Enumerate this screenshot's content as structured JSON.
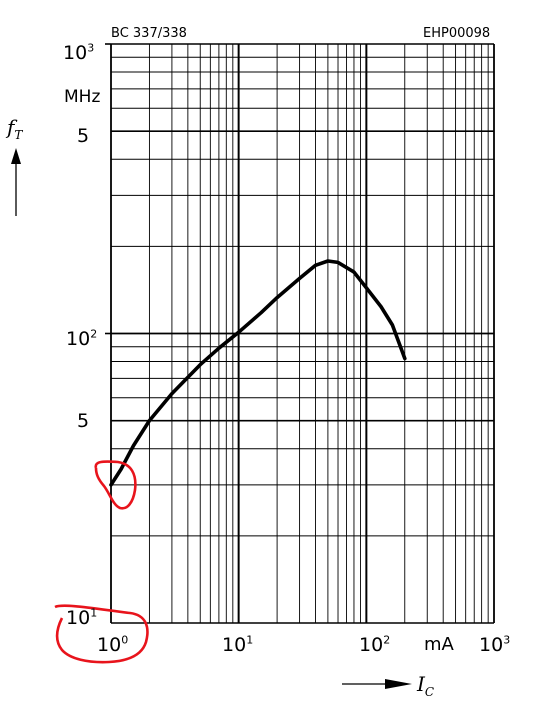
{
  "header": {
    "part_number": "BC 337/338",
    "doc_code": "EHP00098"
  },
  "y_axis": {
    "symbol": "f",
    "subscript": "T",
    "unit": "MHz",
    "tick_labels": [
      {
        "base": "10",
        "exp": "3"
      },
      {
        "base": "5",
        "exp": ""
      },
      {
        "base": "10",
        "exp": "2"
      },
      {
        "base": "5",
        "exp": ""
      },
      {
        "base": "10",
        "exp": "1"
      }
    ]
  },
  "x_axis": {
    "symbol": "I",
    "subscript": "C",
    "unit": "mA",
    "tick_labels": [
      {
        "base": "10",
        "exp": "0"
      },
      {
        "base": "10",
        "exp": "1"
      },
      {
        "base": "10",
        "exp": "2"
      },
      {
        "base": "10",
        "exp": "3"
      }
    ]
  },
  "colors": {
    "line": "#000000",
    "grid": "#000000",
    "annotation": "#e8141c"
  },
  "chart_data": {
    "type": "line",
    "title": "",
    "xlabel": "I_C (mA)",
    "ylabel": "f_T (MHz)",
    "x_scale": "log",
    "y_scale": "log",
    "xlim": [
      1,
      1000
    ],
    "ylim": [
      10,
      1000
    ],
    "grid": true,
    "series": [
      {
        "x": [
          1,
          1.2,
          1.5,
          2,
          3,
          5,
          7,
          10,
          15,
          20,
          30,
          40,
          50,
          60,
          80,
          100,
          130,
          160,
          200
        ],
        "y": [
          30,
          34,
          41,
          50,
          62,
          78,
          89,
          101,
          118,
          133,
          155,
          172,
          178,
          176,
          163,
          144,
          124,
          107,
          82
        ]
      }
    ],
    "annotations": [
      "red hand-drawn circle around curve start at I_C = 10^0 mA",
      "red hand-drawn circle around axis origin labels 10^1 / 10^0"
    ]
  }
}
